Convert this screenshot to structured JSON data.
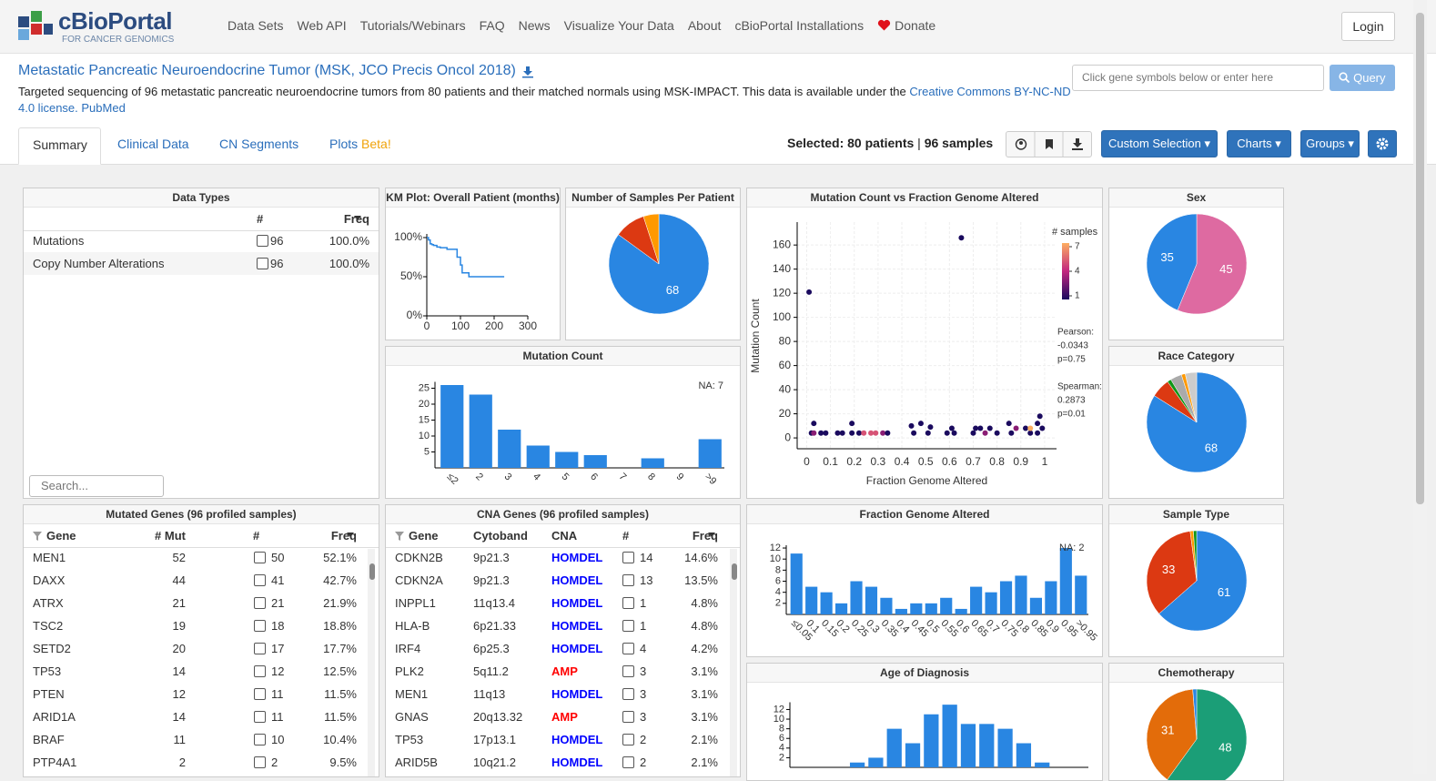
{
  "nav": {
    "logo": "cBioPortal",
    "logo_sub": "FOR CANCER GENOMICS",
    "links": [
      "Data Sets",
      "Web API",
      "Tutorials/Webinars",
      "FAQ",
      "News",
      "Visualize Your Data",
      "About",
      "cBioPortal Installations"
    ],
    "donate": "Donate",
    "login": "Login"
  },
  "study": {
    "title": "Metastatic Pancreatic Neuroendocrine Tumor (MSK, JCO Precis Oncol 2018)",
    "description": "Targeted sequencing of 96 metastatic pancreatic neuroendocrine tumors from 80 patients and their matched normals using MSK-IMPACT. This data is available under the",
    "license": "Creative Commons BY-NC-ND 4.0 license.",
    "pubmed": "PubMed"
  },
  "query": {
    "placeholder": "Click gene symbols below or enter here",
    "button": "Query"
  },
  "tabs": [
    "Summary",
    "Clinical Data",
    "CN Segments",
    "Plots"
  ],
  "beta": "Beta!",
  "selection": {
    "label": "Selected:",
    "patients": "80 patients",
    "separator": "|",
    "samples": "96 samples"
  },
  "buttons": [
    "Custom Selection",
    "Charts",
    "Groups"
  ],
  "data_types": {
    "title": "Data Types",
    "headers": [
      "#",
      "Freq"
    ],
    "rows": [
      [
        "Mutations",
        96,
        "100.0%"
      ],
      [
        "Copy Number Alterations",
        96,
        "100.0%"
      ]
    ],
    "search": "Search..."
  },
  "km": {
    "type": "line",
    "title": "KM Plot: Overall Patient (months)",
    "x": [
      0,
      5,
      10,
      15,
      20,
      30,
      40,
      60,
      90,
      100,
      105,
      125,
      230
    ],
    "values": [
      100,
      97,
      92,
      91,
      90,
      88,
      87,
      85,
      75,
      65,
      55,
      50,
      50
    ],
    "xlim": [
      0,
      300
    ],
    "ylim": [
      0,
      100
    ],
    "xticks": [
      0,
      100,
      200,
      300
    ],
    "yticks": [
      {
        "value": 0,
        "label": "0%"
      },
      {
        "value": 50,
        "label": "50%"
      },
      {
        "value": 100,
        "label": "100%"
      }
    ],
    "color": "#2986e2"
  },
  "samples_per_patient": {
    "type": "pie",
    "title": "Number of Samples Per Patient",
    "values": [
      68,
      8,
      4
    ],
    "colors": [
      "#2986e2",
      "#dc3912",
      "#ff9900"
    ]
  },
  "mutation_count": {
    "type": "bar",
    "title": "Mutation Count",
    "categories": [
      "≤2",
      "2",
      "3",
      "4",
      "5",
      "6",
      "7",
      "8",
      "9",
      ">9"
    ],
    "values": [
      26,
      23,
      12,
      7,
      5,
      4,
      0,
      3,
      0,
      9
    ],
    "ylim": [
      0,
      27
    ],
    "yticks": [
      5,
      10,
      15,
      20,
      25
    ],
    "na": "NA: 7",
    "color": "#2986e2"
  },
  "scatter": {
    "type": "scatter",
    "title": "Mutation Count vs Fraction Genome Altered",
    "x_label": "Fraction Genome Altered",
    "y_label": "Mutation Count",
    "x": [
      0.01,
      0.65,
      0.02,
      0.03,
      0.03,
      0.06,
      0.08,
      0.13,
      0.15,
      0.19,
      0.19,
      0.22,
      0.24,
      0.27,
      0.29,
      0.32,
      0.34,
      0.44,
      0.45,
      0.48,
      0.51,
      0.52,
      0.59,
      0.61,
      0.62,
      0.7,
      0.71,
      0.73,
      0.75,
      0.77,
      0.8,
      0.85,
      0.86,
      0.88,
      0.92,
      0.94,
      0.94,
      0.97,
      0.97,
      0.98,
      0.99
    ],
    "values": [
      121,
      166,
      4,
      12,
      4,
      4,
      4,
      4,
      4,
      12,
      4,
      4,
      4,
      4,
      4,
      4,
      4,
      10,
      4,
      12,
      4,
      9,
      4,
      8,
      4,
      4,
      8,
      8,
      4,
      8,
      4,
      12,
      4,
      8,
      8,
      4,
      8,
      12,
      4,
      18,
      8
    ],
    "samples": [
      1,
      1,
      1,
      1,
      3,
      1,
      1,
      1,
      1,
      1,
      1,
      1,
      5,
      5,
      5,
      3,
      1,
      1,
      1,
      1,
      1,
      1,
      1,
      1,
      1,
      1,
      1,
      1,
      3,
      1,
      1,
      1,
      1,
      3,
      1,
      1,
      7,
      1,
      1,
      1,
      1
    ],
    "xlim": [
      -0.04,
      1.05
    ],
    "ylim": [
      -9,
      179
    ],
    "xticks": [
      0,
      0.1,
      0.2,
      0.3,
      0.4,
      0.5,
      0.6,
      0.7,
      0.8,
      0.9,
      1
    ],
    "yticks": [
      0,
      20,
      40,
      60,
      80,
      100,
      120,
      140,
      160
    ],
    "legend_title": "# samples",
    "legend_ticks": [
      1,
      4,
      7
    ],
    "colors": [
      "#1a0a5e",
      "#c2267f",
      "#fdae61"
    ],
    "pearson_label": "Pearson:",
    "pearson": "-0.0343",
    "pearson_p": "p=0.75",
    "spearman_label": "Spearman:",
    "spearman": "0.2873",
    "spearman_p": "p=0.01",
    "grid": true
  },
  "sex": {
    "type": "pie",
    "title": "Sex",
    "values": [
      45,
      35
    ],
    "colors": [
      "#de6aa1",
      "#2986e2"
    ]
  },
  "race": {
    "type": "pie",
    "title": "Race Category",
    "values": [
      68,
      5,
      1,
      3,
      1,
      3
    ],
    "colors": [
      "#2986e2",
      "#dc3912",
      "#109618",
      "#aaaaaa",
      "#ff9900",
      "#cccccc"
    ]
  },
  "fga": {
    "type": "bar",
    "title": "Fraction Genome Altered",
    "categories": [
      "≤0.05",
      "0.1",
      "0.15",
      "0.2",
      "0.25",
      "0.3",
      "0.35",
      "0.4",
      "0.45",
      "0.5",
      "0.55",
      "0.6",
      "0.65",
      "0.7",
      "0.75",
      "0.8",
      "0.85",
      "0.9",
      "0.95",
      ">0.95"
    ],
    "values": [
      11,
      5,
      4,
      2,
      6,
      5,
      3,
      1,
      2,
      2,
      3,
      1,
      5,
      4,
      6,
      7,
      3,
      6,
      12,
      7
    ],
    "ylim": [
      0,
      12.5
    ],
    "yticks": [
      2,
      4,
      6,
      8,
      10,
      12
    ],
    "na": "NA: 2",
    "color": "#2986e2"
  },
  "sample_type": {
    "type": "pie",
    "title": "Sample Type",
    "values": [
      61,
      33,
      1,
      1
    ],
    "colors": [
      "#2986e2",
      "#dc3912",
      "#ff9900",
      "#109618"
    ]
  },
  "age": {
    "type": "bar",
    "title": "Age of Diagnosis",
    "categories": [
      null,
      null,
      null,
      null,
      null,
      null,
      null,
      null,
      null,
      null,
      null,
      null,
      null,
      null,
      null,
      null
    ],
    "values": [
      0,
      0,
      0,
      1,
      2,
      8,
      5,
      11,
      13,
      9,
      9,
      8,
      5,
      1,
      0,
      0
    ],
    "ylim": [
      0,
      13.5
    ],
    "yticks": [
      2,
      4,
      6,
      8,
      10,
      12
    ],
    "color": "#2986e2"
  },
  "chemo": {
    "type": "pie",
    "title": "Chemotherapy",
    "values": [
      48,
      31,
      1
    ],
    "colors": [
      "#1b9e77",
      "#e36c0a",
      "#2986e2"
    ]
  },
  "mutated_genes": {
    "title": "Mutated Genes (96 profiled samples)",
    "headers": [
      "Gene",
      "# Mut",
      "#",
      "Freq"
    ],
    "rows": [
      [
        "MEN1",
        52,
        50,
        "52.1%"
      ],
      [
        "DAXX",
        44,
        41,
        "42.7%"
      ],
      [
        "ATRX",
        21,
        21,
        "21.9%"
      ],
      [
        "TSC2",
        19,
        18,
        "18.8%"
      ],
      [
        "SETD2",
        20,
        17,
        "17.7%"
      ],
      [
        "TP53",
        14,
        12,
        "12.5%"
      ],
      [
        "PTEN",
        12,
        11,
        "11.5%"
      ],
      [
        "ARID1A",
        14,
        11,
        "11.5%"
      ],
      [
        "BRAF",
        11,
        10,
        "10.4%"
      ],
      [
        "PTP4A1",
        2,
        2,
        "9.5%"
      ]
    ]
  },
  "cna_genes": {
    "title": "CNA Genes (96 profiled samples)",
    "headers": [
      "Gene",
      "Cytoband",
      "CNA",
      "#",
      "Freq"
    ],
    "cna_colors": {
      "HOMDEL": "#0000ff",
      "AMP": "#ff0000"
    },
    "rows": [
      [
        "CDKN2B",
        "9p21.3",
        "HOMDEL",
        14,
        "14.6%"
      ],
      [
        "CDKN2A",
        "9p21.3",
        "HOMDEL",
        13,
        "13.5%"
      ],
      [
        "INPPL1",
        "11q13.4",
        "HOMDEL",
        1,
        "4.8%"
      ],
      [
        "HLA-B",
        "6p21.33",
        "HOMDEL",
        1,
        "4.8%"
      ],
      [
        "IRF4",
        "6p25.3",
        "HOMDEL",
        4,
        "4.2%"
      ],
      [
        "PLK2",
        "5q11.2",
        "AMP",
        3,
        "3.1%"
      ],
      [
        "MEN1",
        "11q13",
        "HOMDEL",
        3,
        "3.1%"
      ],
      [
        "GNAS",
        "20q13.32",
        "AMP",
        3,
        "3.1%"
      ],
      [
        "TP53",
        "17p13.1",
        "HOMDEL",
        2,
        "2.1%"
      ],
      [
        "ARID5B",
        "10q21.2",
        "HOMDEL",
        2,
        "2.1%"
      ]
    ]
  }
}
